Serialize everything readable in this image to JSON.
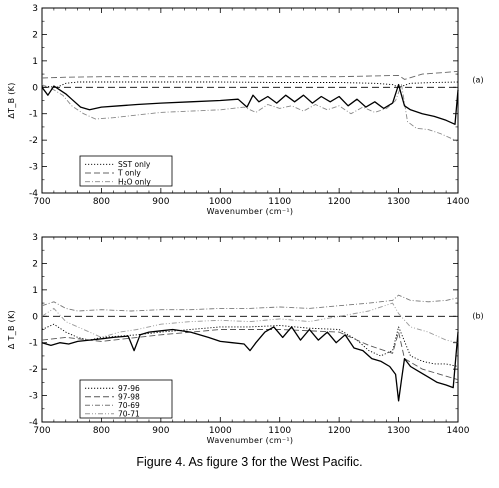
{
  "figure": {
    "caption": "Figure 4. As figure 3 for the West Pacific."
  },
  "chart_data": [
    {
      "type": "line",
      "panel_label": "(a)",
      "xlabel": "Wavenumber (cm⁻¹)",
      "ylabel": "ΔT_B (K)",
      "xlim": [
        700,
        1400
      ],
      "ylim": [
        -4,
        3
      ],
      "xticks": [
        700,
        800,
        900,
        1000,
        1100,
        1200,
        1300,
        1400
      ],
      "yticks": [
        -4,
        -3,
        -2,
        -1,
        0,
        1,
        2,
        3
      ],
      "zero_line": true,
      "legend_position": "lower-left",
      "series": [
        {
          "name": "SST only",
          "style": "dotted",
          "color": "#000000",
          "x": [
            700,
            725,
            740,
            760,
            800,
            900,
            1000,
            1100,
            1200,
            1260,
            1290,
            1300,
            1320,
            1360,
            1400
          ],
          "y": [
            0.05,
            0.0,
            0.15,
            0.2,
            0.2,
            0.2,
            0.2,
            0.18,
            0.18,
            0.15,
            0.1,
            0.0,
            0.15,
            0.18,
            0.2
          ]
        },
        {
          "name": "T only",
          "style": "dashed",
          "color": "#666666",
          "x": [
            700,
            740,
            800,
            900,
            1000,
            1100,
            1200,
            1300,
            1310,
            1340,
            1370,
            1400
          ],
          "y": [
            0.35,
            0.38,
            0.4,
            0.4,
            0.4,
            0.4,
            0.4,
            0.45,
            0.3,
            0.5,
            0.55,
            0.6
          ]
        },
        {
          "name": "H₂O only",
          "style": "dashdot",
          "color": "#888888",
          "x": [
            700,
            720,
            735,
            750,
            770,
            790,
            820,
            860,
            900,
            950,
            1000,
            1040,
            1060,
            1080,
            1100,
            1120,
            1140,
            1160,
            1180,
            1200,
            1220,
            1240,
            1260,
            1280,
            1295,
            1305,
            1315,
            1330,
            1350,
            1370,
            1390,
            1400
          ],
          "y": [
            0.1,
            -0.1,
            -0.3,
            -0.7,
            -1.0,
            -1.2,
            -1.15,
            -1.05,
            -0.95,
            -0.9,
            -0.85,
            -0.75,
            -0.95,
            -0.65,
            -0.8,
            -0.7,
            -0.9,
            -0.65,
            -0.85,
            -0.7,
            -1.0,
            -0.75,
            -0.95,
            -0.8,
            -0.5,
            0.1,
            -1.3,
            -1.55,
            -1.6,
            -1.75,
            -1.95,
            -2.05
          ]
        },
        {
          "name": "",
          "style": "solid",
          "color": "#000000",
          "x": [
            700,
            710,
            720,
            730,
            740,
            750,
            765,
            780,
            800,
            830,
            860,
            900,
            950,
            1000,
            1030,
            1045,
            1055,
            1065,
            1080,
            1095,
            1110,
            1125,
            1140,
            1155,
            1170,
            1185,
            1200,
            1215,
            1230,
            1245,
            1260,
            1275,
            1290,
            1300,
            1305,
            1310,
            1320,
            1340,
            1360,
            1380,
            1395,
            1400
          ],
          "y": [
            0.0,
            -0.3,
            0.05,
            -0.1,
            -0.25,
            -0.45,
            -0.75,
            -0.85,
            -0.75,
            -0.7,
            -0.65,
            -0.6,
            -0.55,
            -0.5,
            -0.45,
            -0.75,
            -0.3,
            -0.55,
            -0.35,
            -0.6,
            -0.3,
            -0.55,
            -0.3,
            -0.6,
            -0.35,
            -0.55,
            -0.35,
            -0.7,
            -0.45,
            -0.75,
            -0.55,
            -0.8,
            -0.6,
            0.1,
            -0.3,
            -0.7,
            -0.85,
            -1.0,
            -1.1,
            -1.25,
            -1.4,
            -0.1
          ]
        }
      ]
    },
    {
      "type": "line",
      "panel_label": "(b)",
      "xlabel": "Wavenumber (cm⁻¹)",
      "ylabel": "Δ T_B (K)",
      "xlim": [
        700,
        1400
      ],
      "ylim": [
        -4,
        3
      ],
      "xticks": [
        700,
        800,
        900,
        1000,
        1100,
        1200,
        1300,
        1400
      ],
      "yticks": [
        -4,
        -3,
        -2,
        -1,
        0,
        1,
        2,
        3
      ],
      "zero_line": true,
      "legend_position": "lower-left",
      "series": [
        {
          "name": "97-96",
          "style": "dotted",
          "color": "#000000",
          "x": [
            700,
            720,
            740,
            760,
            780,
            800,
            830,
            860,
            900,
            950,
            1000,
            1050,
            1100,
            1150,
            1200,
            1230,
            1250,
            1270,
            1290,
            1300,
            1320,
            1340,
            1360,
            1380,
            1400
          ],
          "y": [
            -0.5,
            -0.3,
            -0.6,
            -0.8,
            -0.9,
            -0.8,
            -0.75,
            -0.7,
            -0.6,
            -0.5,
            -0.4,
            -0.4,
            -0.35,
            -0.45,
            -0.5,
            -0.9,
            -1.3,
            -1.5,
            -1.3,
            -0.4,
            -1.5,
            -1.7,
            -1.8,
            -1.8,
            -1.9
          ]
        },
        {
          "name": "97-98",
          "style": "dashed",
          "color": "#555555",
          "x": [
            700,
            740,
            800,
            900,
            1000,
            1100,
            1200,
            1250,
            1290,
            1300,
            1310,
            1340,
            1370,
            1400
          ],
          "y": [
            -0.9,
            -0.8,
            -0.95,
            -0.7,
            -0.5,
            -0.5,
            -0.6,
            -1.1,
            -1.4,
            -0.6,
            -1.6,
            -2.0,
            -2.2,
            -2.4
          ]
        },
        {
          "name": "70-69",
          "style": "dashdot",
          "color": "#777777",
          "x": [
            700,
            720,
            740,
            760,
            800,
            850,
            900,
            950,
            1000,
            1050,
            1100,
            1150,
            1200,
            1250,
            1290,
            1300,
            1320,
            1350,
            1380,
            1400
          ],
          "y": [
            0.4,
            0.55,
            0.3,
            0.2,
            0.25,
            0.2,
            0.25,
            0.25,
            0.3,
            0.3,
            0.35,
            0.3,
            0.4,
            0.5,
            0.6,
            0.8,
            0.6,
            0.55,
            0.6,
            0.7
          ]
        },
        {
          "name": "70-71",
          "style": "dashdotdot",
          "color": "#999999",
          "x": [
            700,
            720,
            740,
            760,
            780,
            800,
            830,
            860,
            900,
            950,
            1000,
            1050,
            1100,
            1150,
            1200,
            1250,
            1290,
            1300,
            1320,
            1350,
            1380,
            1400
          ],
          "y": [
            0.0,
            0.3,
            -0.2,
            -0.4,
            -0.6,
            -0.8,
            -0.6,
            -0.5,
            -0.3,
            -0.2,
            -0.15,
            -0.2,
            -0.1,
            -0.2,
            0.0,
            0.2,
            0.5,
            0.1,
            -0.4,
            -0.6,
            -0.9,
            -1.0
          ]
        },
        {
          "name": "",
          "style": "solid",
          "color": "#000000",
          "x": [
            700,
            715,
            730,
            745,
            760,
            780,
            800,
            820,
            845,
            855,
            865,
            880,
            900,
            920,
            950,
            980,
            1000,
            1020,
            1040,
            1050,
            1060,
            1075,
            1090,
            1105,
            1120,
            1135,
            1150,
            1165,
            1180,
            1195,
            1210,
            1225,
            1240,
            1255,
            1270,
            1285,
            1295,
            1300,
            1305,
            1310,
            1320,
            1335,
            1350,
            1365,
            1380,
            1392,
            1400
          ],
          "y": [
            -1.0,
            -1.1,
            -1.0,
            -1.05,
            -0.95,
            -0.9,
            -0.85,
            -0.8,
            -0.75,
            -1.3,
            -0.7,
            -0.6,
            -0.55,
            -0.5,
            -0.6,
            -0.8,
            -0.95,
            -1.0,
            -1.05,
            -1.3,
            -1.0,
            -0.6,
            -0.4,
            -0.8,
            -0.4,
            -0.9,
            -0.5,
            -0.9,
            -0.6,
            -1.0,
            -0.7,
            -1.2,
            -1.3,
            -1.6,
            -1.7,
            -1.9,
            -2.2,
            -3.2,
            -2.4,
            -1.6,
            -1.9,
            -2.1,
            -2.3,
            -2.5,
            -2.6,
            -2.7,
            -0.6
          ]
        }
      ]
    }
  ]
}
